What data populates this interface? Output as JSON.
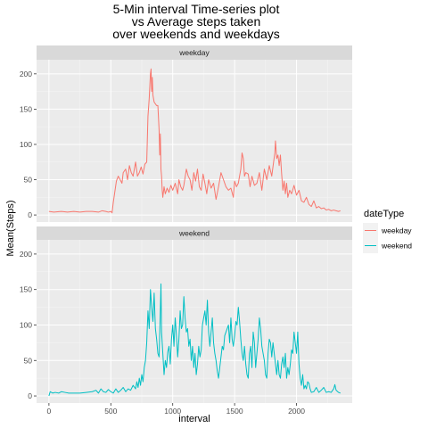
{
  "chart_data": {
    "type": "line",
    "title_lines": [
      "5-Min interval Time-series plot",
      "vs Average steps taken",
      "over weekends and weekdays"
    ],
    "xlabel": "interval",
    "ylabel": "Mean(Steps)",
    "xlim": [
      -100,
      2450
    ],
    "ylim": [
      -10,
      220
    ],
    "x_ticks": [
      0,
      500,
      1000,
      1500,
      2000
    ],
    "y_ticks": [
      0,
      50,
      100,
      150,
      200
    ],
    "grid": true,
    "legend": {
      "title": "dateType",
      "position": "right"
    },
    "panels": [
      {
        "strip": "weekday",
        "series": "weekday"
      },
      {
        "strip": "weekend",
        "series": "weekend"
      }
    ],
    "series": [
      {
        "name": "weekday",
        "color": "#F8766D",
        "points": [
          [
            0,
            5
          ],
          [
            40,
            4
          ],
          [
            100,
            5
          ],
          [
            150,
            4
          ],
          [
            200,
            5
          ],
          [
            250,
            4
          ],
          [
            300,
            5
          ],
          [
            350,
            5
          ],
          [
            400,
            4
          ],
          [
            430,
            6
          ],
          [
            460,
            5
          ],
          [
            480,
            4
          ],
          [
            500,
            5
          ],
          [
            510,
            3
          ],
          [
            520,
            18
          ],
          [
            530,
            30
          ],
          [
            545,
            48
          ],
          [
            560,
            55
          ],
          [
            575,
            50
          ],
          [
            590,
            45
          ],
          [
            600,
            60
          ],
          [
            620,
            65
          ],
          [
            635,
            50
          ],
          [
            650,
            70
          ],
          [
            665,
            60
          ],
          [
            680,
            55
          ],
          [
            700,
            75
          ],
          [
            715,
            55
          ],
          [
            730,
            60
          ],
          [
            745,
            68
          ],
          [
            760,
            58
          ],
          [
            775,
            72
          ],
          [
            790,
            75
          ],
          [
            800,
            140
          ],
          [
            810,
            165
          ],
          [
            820,
            200
          ],
          [
            825,
            207
          ],
          [
            830,
            175
          ],
          [
            835,
            195
          ],
          [
            840,
            170
          ],
          [
            850,
            160
          ],
          [
            870,
            155
          ],
          [
            880,
            155
          ],
          [
            890,
            120
          ],
          [
            895,
            85
          ],
          [
            900,
            115
          ],
          [
            905,
            65
          ],
          [
            910,
            55
          ],
          [
            915,
            35
          ],
          [
            920,
            25
          ],
          [
            930,
            40
          ],
          [
            940,
            30
          ],
          [
            955,
            38
          ],
          [
            970,
            32
          ],
          [
            985,
            42
          ],
          [
            1000,
            35
          ],
          [
            1020,
            45
          ],
          [
            1040,
            30
          ],
          [
            1050,
            50
          ],
          [
            1065,
            40
          ],
          [
            1080,
            35
          ],
          [
            1090,
            42
          ],
          [
            1110,
            65
          ],
          [
            1125,
            55
          ],
          [
            1140,
            50
          ],
          [
            1155,
            35
          ],
          [
            1170,
            60
          ],
          [
            1185,
            48
          ],
          [
            1200,
            65
          ],
          [
            1215,
            40
          ],
          [
            1230,
            35
          ],
          [
            1245,
            58
          ],
          [
            1260,
            45
          ],
          [
            1275,
            30
          ],
          [
            1290,
            50
          ],
          [
            1310,
            38
          ],
          [
            1330,
            45
          ],
          [
            1350,
            22
          ],
          [
            1370,
            40
          ],
          [
            1390,
            60
          ],
          [
            1410,
            50
          ],
          [
            1430,
            40
          ],
          [
            1450,
            35
          ],
          [
            1470,
            38
          ],
          [
            1490,
            25
          ],
          [
            1500,
            48
          ],
          [
            1515,
            40
          ],
          [
            1530,
            45
          ],
          [
            1550,
            65
          ],
          [
            1560,
            88
          ],
          [
            1570,
            80
          ],
          [
            1580,
            55
          ],
          [
            1590,
            60
          ],
          [
            1610,
            58
          ],
          [
            1625,
            40
          ],
          [
            1640,
            55
          ],
          [
            1660,
            42
          ],
          [
            1680,
            45
          ],
          [
            1700,
            60
          ],
          [
            1720,
            35
          ],
          [
            1740,
            65
          ],
          [
            1760,
            50
          ],
          [
            1780,
            70
          ],
          [
            1800,
            55
          ],
          [
            1815,
            75
          ],
          [
            1825,
            88
          ],
          [
            1830,
            105
          ],
          [
            1840,
            80
          ],
          [
            1850,
            85
          ],
          [
            1860,
            70
          ],
          [
            1870,
            85
          ],
          [
            1880,
            58
          ],
          [
            1890,
            35
          ],
          [
            1900,
            48
          ],
          [
            1910,
            30
          ],
          [
            1920,
            45
          ],
          [
            1930,
            25
          ],
          [
            1945,
            35
          ],
          [
            1960,
            30
          ],
          [
            1980,
            42
          ],
          [
            2000,
            28
          ],
          [
            2020,
            35
          ],
          [
            2040,
            20
          ],
          [
            2060,
            18
          ],
          [
            2080,
            25
          ],
          [
            2100,
            15
          ],
          [
            2120,
            12
          ],
          [
            2140,
            20
          ],
          [
            2160,
            10
          ],
          [
            2180,
            12
          ],
          [
            2200,
            9
          ],
          [
            2220,
            10
          ],
          [
            2240,
            7
          ],
          [
            2260,
            8
          ],
          [
            2280,
            6
          ],
          [
            2300,
            7
          ],
          [
            2320,
            6
          ],
          [
            2340,
            5
          ],
          [
            2355,
            6
          ]
        ]
      },
      {
        "name": "weekend",
        "color": "#00BFC4",
        "points": [
          [
            0,
            0
          ],
          [
            10,
            6
          ],
          [
            30,
            4
          ],
          [
            50,
            5
          ],
          [
            80,
            4
          ],
          [
            100,
            6
          ],
          [
            130,
            5
          ],
          [
            160,
            4
          ],
          [
            200,
            4
          ],
          [
            250,
            4
          ],
          [
            300,
            5
          ],
          [
            350,
            6
          ],
          [
            380,
            8
          ],
          [
            400,
            4
          ],
          [
            420,
            10
          ],
          [
            440,
            6
          ],
          [
            460,
            5
          ],
          [
            480,
            9
          ],
          [
            500,
            6
          ],
          [
            520,
            4
          ],
          [
            540,
            10
          ],
          [
            560,
            5
          ],
          [
            580,
            8
          ],
          [
            600,
            12
          ],
          [
            620,
            6
          ],
          [
            640,
            10
          ],
          [
            660,
            8
          ],
          [
            680,
            15
          ],
          [
            700,
            10
          ],
          [
            710,
            20
          ],
          [
            720,
            12
          ],
          [
            730,
            25
          ],
          [
            740,
            15
          ],
          [
            750,
            30
          ],
          [
            760,
            20
          ],
          [
            770,
            40
          ],
          [
            780,
            50
          ],
          [
            790,
            75
          ],
          [
            800,
            120
          ],
          [
            810,
            95
          ],
          [
            820,
            150
          ],
          [
            830,
            125
          ],
          [
            840,
            105
          ],
          [
            850,
            145
          ],
          [
            860,
            95
          ],
          [
            870,
            80
          ],
          [
            880,
            60
          ],
          [
            890,
            55
          ],
          [
            900,
            120
          ],
          [
            905,
            158
          ],
          [
            910,
            90
          ],
          [
            920,
            60
          ],
          [
            930,
            30
          ],
          [
            940,
            50
          ],
          [
            950,
            40
          ],
          [
            960,
            62
          ],
          [
            970,
            70
          ],
          [
            980,
            45
          ],
          [
            990,
            80
          ],
          [
            1000,
            100
          ],
          [
            1010,
            70
          ],
          [
            1020,
            110
          ],
          [
            1030,
            85
          ],
          [
            1040,
            55
          ],
          [
            1050,
            80
          ],
          [
            1060,
            120
          ],
          [
            1070,
            95
          ],
          [
            1080,
            100
          ],
          [
            1090,
            140
          ],
          [
            1100,
            110
          ],
          [
            1110,
            90
          ],
          [
            1120,
            95
          ],
          [
            1130,
            70
          ],
          [
            1140,
            80
          ],
          [
            1150,
            50
          ],
          [
            1160,
            70
          ],
          [
            1170,
            40
          ],
          [
            1180,
            60
          ],
          [
            1190,
            30
          ],
          [
            1200,
            45
          ],
          [
            1210,
            70
          ],
          [
            1220,
            55
          ],
          [
            1230,
            65
          ],
          [
            1240,
            100
          ],
          [
            1250,
            110
          ],
          [
            1260,
            120
          ],
          [
            1270,
            100
          ],
          [
            1280,
            135
          ],
          [
            1290,
            90
          ],
          [
            1300,
            70
          ],
          [
            1310,
            90
          ],
          [
            1320,
            110
          ],
          [
            1330,
            75
          ],
          [
            1340,
            60
          ],
          [
            1350,
            50
          ],
          [
            1360,
            35
          ],
          [
            1370,
            25
          ],
          [
            1380,
            40
          ],
          [
            1390,
            55
          ],
          [
            1400,
            70
          ],
          [
            1410,
            65
          ],
          [
            1420,
            85
          ],
          [
            1430,
            90
          ],
          [
            1440,
            95
          ],
          [
            1450,
            100
          ],
          [
            1460,
            75
          ],
          [
            1470,
            110
          ],
          [
            1480,
            80
          ],
          [
            1490,
            70
          ],
          [
            1500,
            85
          ],
          [
            1510,
            105
          ],
          [
            1520,
            100
          ],
          [
            1530,
            125
          ],
          [
            1540,
            105
          ],
          [
            1550,
            80
          ],
          [
            1560,
            60
          ],
          [
            1570,
            50
          ],
          [
            1580,
            70
          ],
          [
            1590,
            45
          ],
          [
            1600,
            30
          ],
          [
            1610,
            25
          ],
          [
            1620,
            60
          ],
          [
            1630,
            70
          ],
          [
            1640,
            40
          ],
          [
            1650,
            90
          ],
          [
            1660,
            75
          ],
          [
            1670,
            40
          ],
          [
            1680,
            60
          ],
          [
            1690,
            80
          ],
          [
            1700,
            110
          ],
          [
            1710,
            95
          ],
          [
            1720,
            70
          ],
          [
            1730,
            60
          ],
          [
            1740,
            50
          ],
          [
            1750,
            30
          ],
          [
            1760,
            25
          ],
          [
            1770,
            60
          ],
          [
            1780,
            80
          ],
          [
            1790,
            75
          ],
          [
            1800,
            55
          ],
          [
            1810,
            75
          ],
          [
            1820,
            60
          ],
          [
            1830,
            45
          ],
          [
            1840,
            30
          ],
          [
            1850,
            50
          ],
          [
            1860,
            30
          ],
          [
            1870,
            25
          ],
          [
            1880,
            45
          ],
          [
            1890,
            55
          ],
          [
            1900,
            40
          ],
          [
            1910,
            60
          ],
          [
            1920,
            25
          ],
          [
            1930,
            40
          ],
          [
            1940,
            30
          ],
          [
            1950,
            45
          ],
          [
            1960,
            65
          ],
          [
            1970,
            60
          ],
          [
            1980,
            90
          ],
          [
            1990,
            75
          ],
          [
            2000,
            60
          ],
          [
            2010,
            90
          ],
          [
            2020,
            45
          ],
          [
            2030,
            25
          ],
          [
            2040,
            15
          ],
          [
            2050,
            30
          ],
          [
            2060,
            10
          ],
          [
            2070,
            15
          ],
          [
            2080,
            10
          ],
          [
            2090,
            20
          ],
          [
            2100,
            18
          ],
          [
            2110,
            10
          ],
          [
            2120,
            5
          ],
          [
            2140,
            6
          ],
          [
            2160,
            12
          ],
          [
            2180,
            5
          ],
          [
            2200,
            8
          ],
          [
            2220,
            12
          ],
          [
            2240,
            5
          ],
          [
            2260,
            6
          ],
          [
            2280,
            5
          ],
          [
            2300,
            10
          ],
          [
            2310,
            16
          ],
          [
            2320,
            8
          ],
          [
            2340,
            5
          ],
          [
            2355,
            4
          ]
        ]
      }
    ]
  }
}
